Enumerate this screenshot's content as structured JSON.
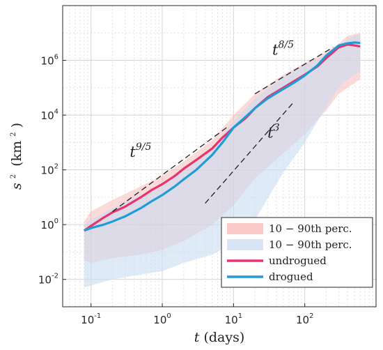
{
  "chart_data": {
    "type": "line",
    "xscale": "log",
    "yscale": "log",
    "xlim": [
      0.04,
      1000
    ],
    "ylim": [
      0.001,
      100000000
    ],
    "grid": true,
    "legend_position": "bottom-right",
    "xlabel": {
      "var": "t",
      "unit": "(days)"
    },
    "ylabel": {
      "var": "s",
      "exp": "2",
      "unit": "(km",
      "unit_exp": "2",
      "close": ")"
    },
    "xticks": [
      {
        "value": 0.1,
        "base": "10",
        "exp": "-1"
      },
      {
        "value": 1,
        "base": "10",
        "exp": "0"
      },
      {
        "value": 10,
        "base": "10",
        "exp": "1"
      },
      {
        "value": 100,
        "base": "10",
        "exp": "2"
      }
    ],
    "yticks": [
      {
        "value": 0.01,
        "base": "10",
        "exp": "-2"
      },
      {
        "value": 1,
        "base": "10",
        "exp": "0"
      },
      {
        "value": 100,
        "base": "10",
        "exp": "2"
      },
      {
        "value": 10000,
        "base": "10",
        "exp": "4"
      },
      {
        "value": 1000000,
        "base": "10",
        "exp": "6"
      }
    ],
    "bands": [
      {
        "name": "10 − 90th perc.",
        "color": "#f7b6b6",
        "opacity": 0.5,
        "x": [
          0.08,
          0.1,
          0.2,
          0.5,
          1,
          2,
          5,
          10,
          20,
          50,
          100,
          200,
          300,
          400,
          500,
          600
        ],
        "lower": [
          0.05,
          0.04,
          0.06,
          0.08,
          0.12,
          0.25,
          1,
          5,
          50,
          400,
          2000,
          15000,
          60000,
          100000,
          150000,
          200000
        ],
        "upper": [
          1.3,
          3,
          8,
          25,
          60,
          200,
          1200,
          10000,
          60000,
          300000,
          800000,
          2000000,
          4000000,
          8000000,
          9000000,
          10000000
        ]
      },
      {
        "name": "10 − 90th perc.",
        "color": "#c9dcf2",
        "opacity": 0.6,
        "x": [
          0.08,
          0.1,
          0.2,
          0.5,
          1,
          2,
          5,
          10,
          20,
          50,
          100,
          200,
          300,
          400,
          500,
          600
        ],
        "lower": [
          0.005,
          0.006,
          0.01,
          0.015,
          0.02,
          0.04,
          0.08,
          0.2,
          1.5,
          80,
          1000,
          20000,
          100000,
          200000,
          300000,
          400000
        ],
        "upper": [
          0.9,
          1.5,
          4,
          12,
          30,
          100,
          700,
          6000,
          40000,
          250000,
          700000,
          1500000,
          3000000,
          6000000,
          8000000,
          9000000
        ]
      }
    ],
    "series": [
      {
        "name": "undrogued",
        "color": "#e8336b",
        "x": [
          0.08,
          0.1,
          0.15,
          0.2,
          0.3,
          0.5,
          0.7,
          1,
          1.5,
          2,
          3,
          5,
          7,
          10,
          15,
          20,
          30,
          50,
          70,
          100,
          150,
          200,
          300,
          400,
          500,
          600
        ],
        "y": [
          0.6,
          0.9,
          1.8,
          2.8,
          4.5,
          10,
          18,
          30,
          60,
          110,
          230,
          600,
          1500,
          3500,
          8000,
          18000,
          45000,
          100000,
          170000,
          300000,
          600000,
          1200000,
          3000000,
          3800000,
          3500000,
          3200000
        ]
      },
      {
        "name": "drogued",
        "color": "#1f9bd7",
        "x": [
          0.08,
          0.1,
          0.15,
          0.2,
          0.3,
          0.5,
          0.7,
          1,
          1.5,
          2,
          3,
          5,
          7,
          10,
          15,
          20,
          30,
          50,
          70,
          100,
          150,
          200,
          300,
          400,
          500,
          600
        ],
        "y": [
          0.6,
          0.75,
          1.0,
          1.3,
          2.0,
          4,
          7,
          12,
          25,
          45,
          100,
          350,
          1000,
          3500,
          9000,
          18000,
          40000,
          90000,
          150000,
          280000,
          650000,
          1500000,
          3500000,
          4200000,
          4500000,
          4300000
        ]
      }
    ],
    "reference_lines": [
      {
        "label_base": "t",
        "label_exp": "9/5",
        "x": [
          0.2,
          8
        ],
        "y": [
          3,
          3500
        ],
        "label_at": [
          0.35,
          300
        ]
      },
      {
        "label_base": "t",
        "label_exp": "3",
        "x": [
          4,
          70
        ],
        "y": [
          6,
          30000
        ],
        "label_at": [
          30,
          1500
        ]
      },
      {
        "label_base": "t",
        "label_exp": "8/5",
        "x": [
          20,
          250
        ],
        "y": [
          60000,
          3000000
        ],
        "label_at": [
          35,
          1600000
        ]
      }
    ]
  }
}
